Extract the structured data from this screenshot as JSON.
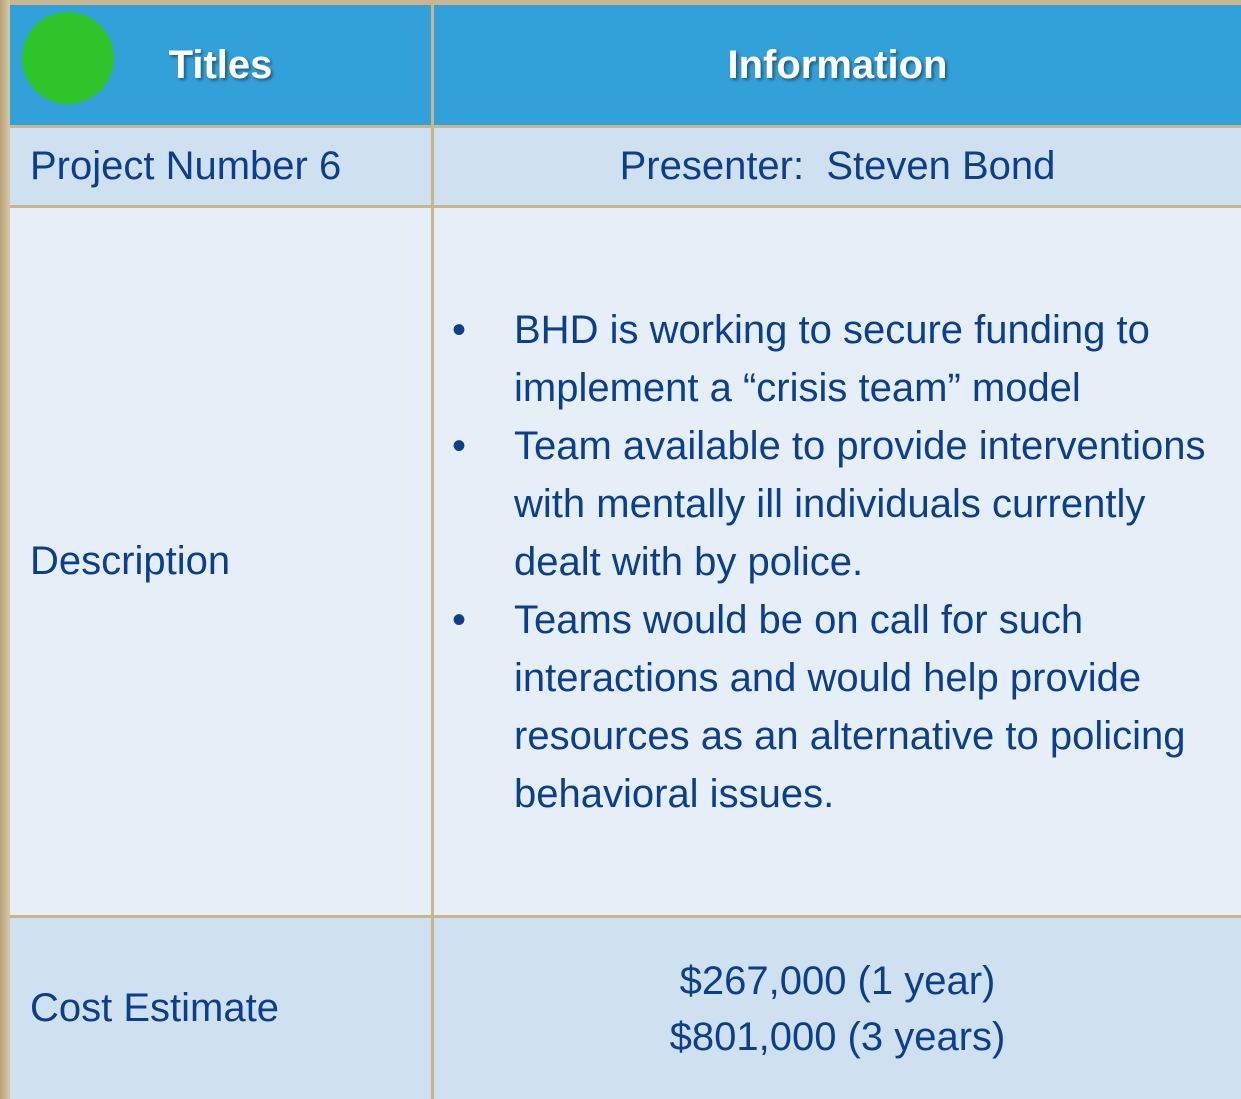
{
  "table": {
    "header": [
      "Titles",
      "Information"
    ],
    "rows": [
      {
        "title": "Project Number 6",
        "info": "Presenter:  Steven Bond"
      },
      {
        "title": "Description",
        "bullets": [
          "BHD is working to secure funding to implement a “crisis team” model",
          "Team available to provide interventions with mentally ill individuals currently dealt with by police.",
          "Teams would be on call for such interactions and would help provide resources as an alternative to policing behavioral issues."
        ]
      },
      {
        "title": "Cost Estimate",
        "lines": [
          "$267,000 (1 year)",
          "$801,000 (3 years)"
        ]
      }
    ]
  }
}
